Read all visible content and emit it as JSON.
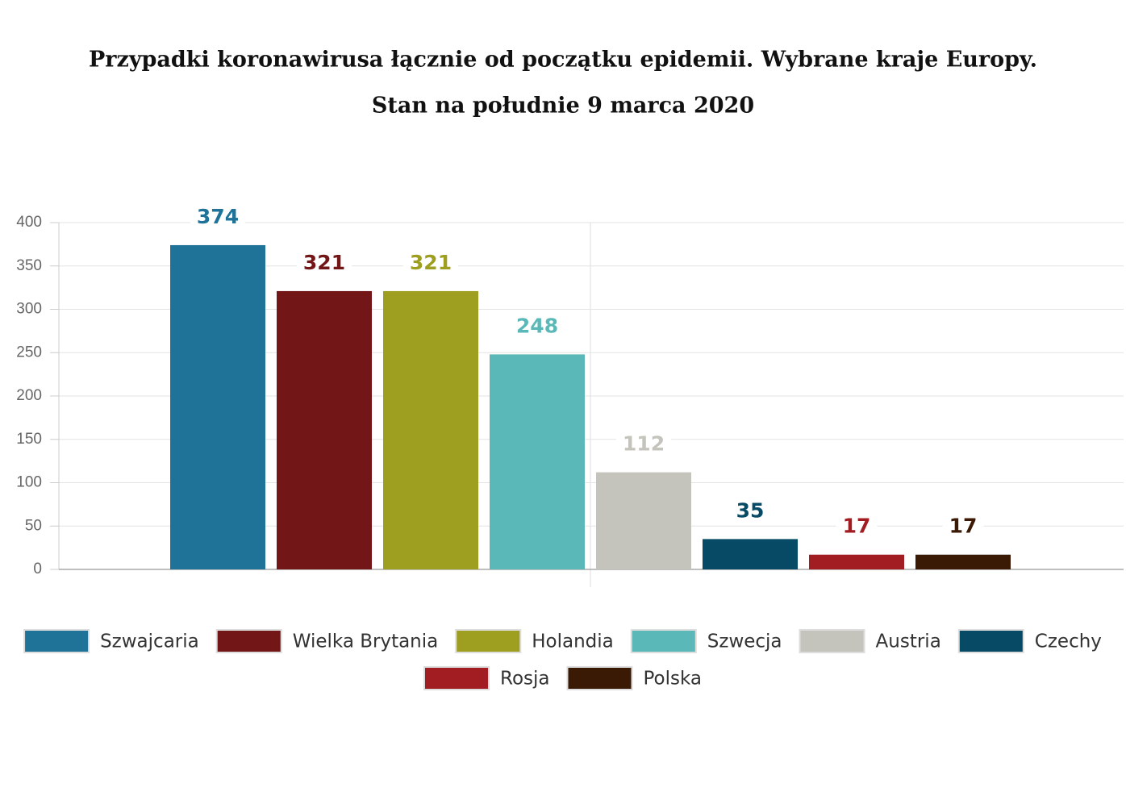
{
  "chart_data": {
    "type": "bar",
    "title": "Przypadki koronawirusa łącznie od początku epidemii. Wybrane kraje Europy.",
    "subtitle": "Stan na południe 9 marca 2020",
    "series": [
      {
        "name": "Szwajcaria",
        "color": "#1f7399",
        "values": [
          374
        ]
      },
      {
        "name": "Wielka Brytania",
        "color": "#731618",
        "values": [
          321
        ]
      },
      {
        "name": "Holandia",
        "color": "#9e9e20",
        "values": [
          321
        ]
      },
      {
        "name": "Szwecja",
        "color": "#5bb8b8",
        "values": [
          248
        ]
      },
      {
        "name": "Austria",
        "color": "#c4c4bc",
        "values": [
          112
        ]
      },
      {
        "name": "Czechy",
        "color": "#064a66",
        "values": [
          35
        ]
      },
      {
        "name": "Rosja",
        "color": "#a11d21",
        "values": [
          17
        ]
      },
      {
        "name": "Polska",
        "color": "#3b1a05",
        "values": [
          17
        ]
      }
    ],
    "ylim": [
      0,
      400
    ],
    "yticks": [
      0,
      50,
      100,
      150,
      200,
      250,
      300,
      350,
      400
    ],
    "grid": true
  }
}
